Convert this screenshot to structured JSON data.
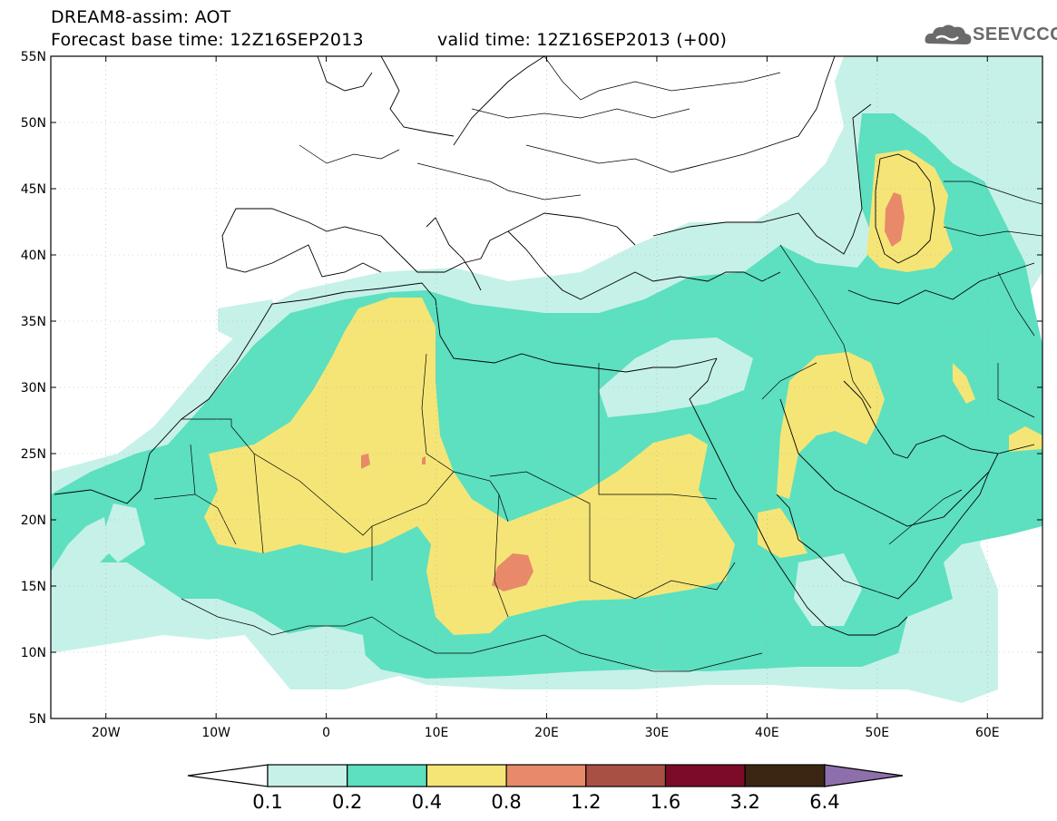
{
  "title": {
    "line1": "DREAM8-assim: AOT",
    "line2_left": "Forecast base time: 12Z16SEP2013",
    "line2_right": "valid time: 12Z16SEP2013 (+00)"
  },
  "logo": {
    "text": "SEEVCCC",
    "icon": "cloud-icon"
  },
  "map": {
    "lat_labels": [
      "55N",
      "50N",
      "45N",
      "40N",
      "35N",
      "30N",
      "25N",
      "20N",
      "15N",
      "10N",
      "5N"
    ],
    "lon_labels": [
      "20W",
      "10W",
      "0",
      "10E",
      "20E",
      "30E",
      "40E",
      "50E",
      "60E"
    ],
    "lon_range": [
      -25,
      65
    ],
    "lat_range": [
      5,
      55
    ]
  },
  "colorbar": {
    "levels": [
      "0.1",
      "0.2",
      "0.4",
      "0.8",
      "1.2",
      "1.6",
      "3.2",
      "6.4"
    ],
    "colors": [
      "#ffffff",
      "#c6f1e8",
      "#5ce0bf",
      "#f5e577",
      "#e88a69",
      "#a95044",
      "#7c0b28",
      "#3b2613",
      "#8e6fab"
    ]
  }
}
